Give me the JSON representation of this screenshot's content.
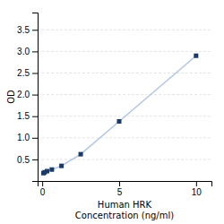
{
  "chart_data": {
    "type": "line",
    "xlabel": "Human HRK\nConcentration (ng/ml)",
    "ylabel": "OD",
    "x": [
      0.078,
      0.156,
      0.313,
      0.625,
      1.25,
      2.5,
      5.0,
      10.0
    ],
    "series": [
      {
        "values": [
          0.182,
          0.202,
          0.228,
          0.265,
          0.35,
          0.62,
          1.38,
          2.9
        ],
        "color": "#aec6e8",
        "colors": [
          "#1a3a6b",
          "#1a3a6b",
          "#1a3a6b",
          "#1a3a6b",
          "#1a3a6b",
          "#1a3a6b",
          "#1a3a6b",
          "#1a3a6b"
        ],
        "marker": "square",
        "line_style": "solid"
      }
    ],
    "xlim": [
      -0.3,
      11
    ],
    "ylim": [
      0.0,
      3.9
    ],
    "xticks": [
      0,
      5,
      10
    ],
    "yticks": [
      0.5,
      {
        "value": 1.0,
        "label": "1.0"
      },
      1.5,
      {
        "value": 2.0,
        "label": "2.0"
      },
      2.5,
      {
        "value": 3.0,
        "label": "3.0"
      },
      3.5
    ],
    "grid": true
  }
}
